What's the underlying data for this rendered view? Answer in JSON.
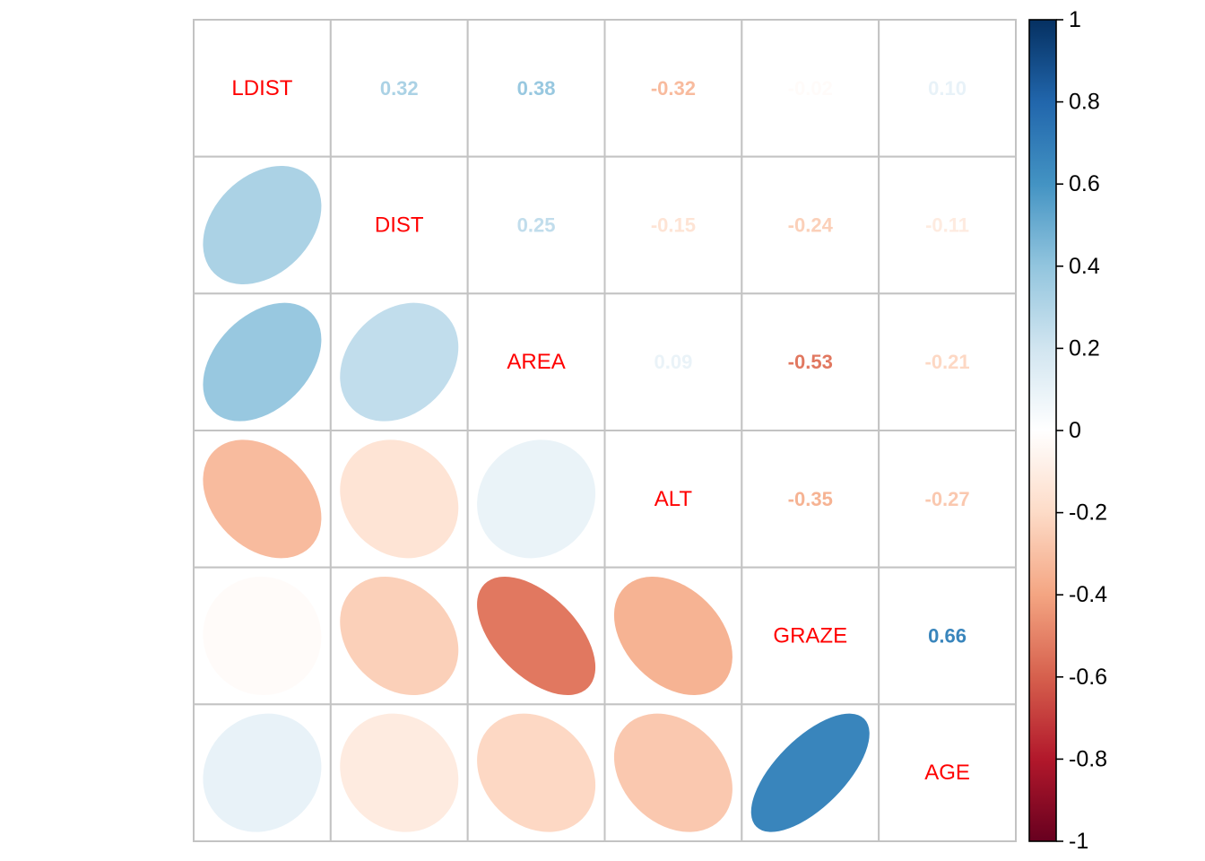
{
  "chart_data": {
    "type": "heatmap",
    "subtype": "correlation-ellipse-matrix",
    "title": "",
    "variables": [
      "LDIST",
      "DIST",
      "AREA",
      "ALT",
      "GRAZE",
      "AGE"
    ],
    "upper_triangle_display": [
      [
        "",
        "0.32",
        "0.38",
        "-0.32",
        "-0.02",
        "0.10"
      ],
      [
        "",
        "",
        "0.25",
        "-0.15",
        "-0.24",
        "-0.11"
      ],
      [
        "",
        "",
        "",
        "0.09",
        "-0.53",
        "-0.21"
      ],
      [
        "",
        "",
        "",
        "",
        "-0.35",
        "-0.27"
      ],
      [
        "",
        "",
        "",
        "",
        "",
        "0.66"
      ],
      [
        "",
        "",
        "",
        "",
        "",
        ""
      ]
    ],
    "lower_triangle_glyph": "ellipse",
    "value_range": [
      -1,
      1
    ],
    "grid": true,
    "legend_position": "right",
    "colorbar_ticks": [
      "1",
      "0.8",
      "0.6",
      "0.4",
      "0.2",
      "0",
      "-0.2",
      "-0.4",
      "-0.6",
      "-0.8",
      "-1"
    ],
    "palette_neg_to_pos": [
      "#67001F",
      "#B2182B",
      "#D6604D",
      "#F4A582",
      "#FDDBC7",
      "#FFFFFF",
      "#D1E5F0",
      "#92C5DE",
      "#4393C3",
      "#2166AC",
      "#053061"
    ],
    "diagonal_label_color": "#FF0000",
    "grid_color": "#C3C3C3",
    "colorbar_border_color": "#000000",
    "tick_label_color": "#000000",
    "background_color": "#FFFFFF"
  }
}
